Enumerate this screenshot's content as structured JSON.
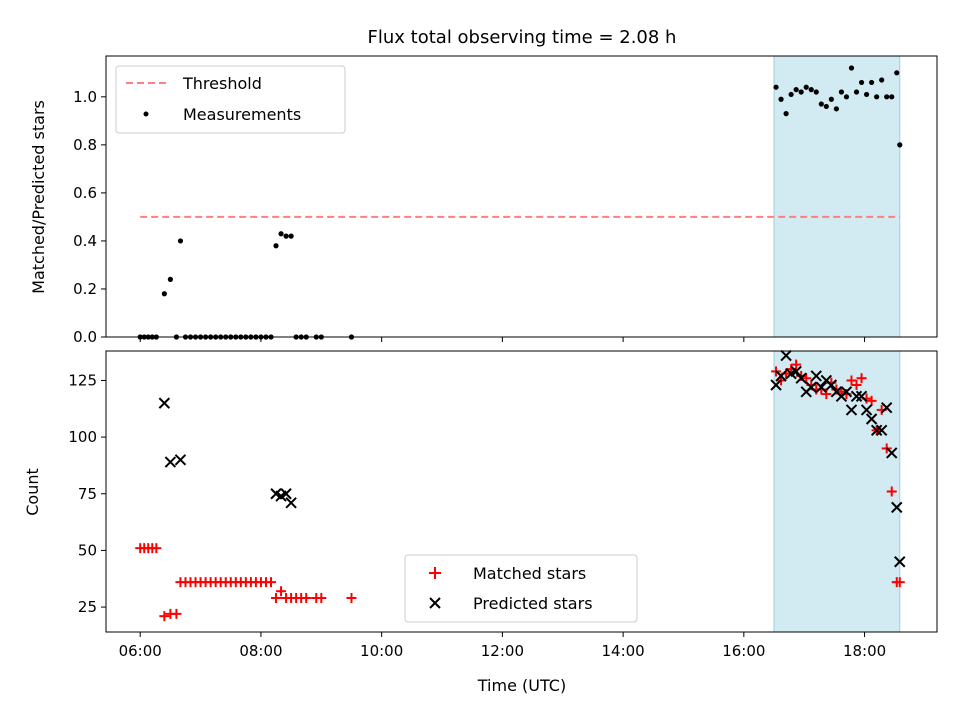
{
  "figure": {
    "title": "Flux total observing time = 2.08 h",
    "xlabel": "Time (UTC)"
  },
  "chart_data": [
    {
      "type": "scatter",
      "ylabel": "Matched/Predicted stars",
      "xlim": [
        "05:26",
        "19:12"
      ],
      "ylim": [
        0,
        1.17
      ],
      "yticks": [
        "0.0",
        "0.2",
        "0.4",
        "0.6",
        "0.8",
        "1.0"
      ],
      "grid": false,
      "legend": "top-left",
      "highlight_span": {
        "start": "16:30",
        "end": "18:35",
        "color": "#add8e6"
      },
      "series": [
        {
          "name": "Threshold",
          "style": "dashed-line",
          "color": "#ff7f7f",
          "x": [
            "06:00",
            "18:35"
          ],
          "y": [
            0.5,
            0.5
          ]
        },
        {
          "name": "Measurements",
          "style": "dot",
          "color": "#000000",
          "x": [
            "06:00",
            "06:04",
            "06:08",
            "06:12",
            "06:16",
            "06:24",
            "06:30",
            "06:36",
            "06:40",
            "06:45",
            "06:50",
            "06:55",
            "07:00",
            "07:05",
            "07:10",
            "07:15",
            "07:20",
            "07:25",
            "07:30",
            "07:35",
            "07:40",
            "07:45",
            "07:50",
            "07:55",
            "08:00",
            "08:05",
            "08:10",
            "08:15",
            "08:20",
            "08:25",
            "08:30",
            "08:35",
            "08:40",
            "08:45",
            "08:55",
            "09:00",
            "09:30",
            "16:32",
            "16:37",
            "16:42",
            "16:47",
            "16:52",
            "16:57",
            "17:02",
            "17:07",
            "17:12",
            "17:17",
            "17:22",
            "17:27",
            "17:32",
            "17:37",
            "17:42",
            "17:47",
            "17:52",
            "17:57",
            "18:02",
            "18:07",
            "18:12",
            "18:17",
            "18:22",
            "18:27",
            "18:32",
            "18:35"
          ],
          "y": [
            0,
            0,
            0,
            0,
            0,
            0.18,
            0.24,
            0,
            0.4,
            0,
            0,
            0,
            0,
            0,
            0,
            0,
            0,
            0,
            0,
            0,
            0,
            0,
            0,
            0,
            0,
            0,
            0,
            0.38,
            0.43,
            0.42,
            0.42,
            0,
            0,
            0,
            0,
            0,
            0,
            1.04,
            0.99,
            0.93,
            1.01,
            1.03,
            1.02,
            1.04,
            1.03,
            1.02,
            0.97,
            0.96,
            0.99,
            0.95,
            1.02,
            1.0,
            1.12,
            1.02,
            1.06,
            1.01,
            1.06,
            1.0,
            1.07,
            1.0,
            1.0,
            1.1,
            0.8
          ]
        }
      ]
    },
    {
      "type": "scatter",
      "ylabel": "Count",
      "xlim": [
        "05:26",
        "19:12"
      ],
      "ylim": [
        14,
        138
      ],
      "yticks": [
        "25",
        "50",
        "75",
        "100",
        "125"
      ],
      "xticks": [
        "06:00",
        "08:00",
        "10:00",
        "12:00",
        "14:00",
        "16:00",
        "18:00"
      ],
      "grid": false,
      "legend": "bottom-center",
      "highlight_span": {
        "start": "16:30",
        "end": "18:35",
        "color": "#add8e6"
      },
      "series": [
        {
          "name": "Matched stars",
          "marker": "+",
          "color": "#ff0000",
          "x": [
            "06:00",
            "06:04",
            "06:08",
            "06:12",
            "06:16",
            "06:24",
            "06:30",
            "06:36",
            "06:40",
            "06:45",
            "06:50",
            "06:55",
            "07:00",
            "07:05",
            "07:10",
            "07:15",
            "07:20",
            "07:25",
            "07:30",
            "07:35",
            "07:40",
            "07:45",
            "07:50",
            "07:55",
            "08:00",
            "08:05",
            "08:10",
            "08:15",
            "08:20",
            "08:25",
            "08:30",
            "08:35",
            "08:40",
            "08:45",
            "08:55",
            "09:00",
            "09:30",
            "16:32",
            "16:37",
            "16:42",
            "16:47",
            "16:52",
            "16:57",
            "17:02",
            "17:07",
            "17:12",
            "17:17",
            "17:22",
            "17:27",
            "17:32",
            "17:37",
            "17:42",
            "17:47",
            "17:52",
            "17:57",
            "18:02",
            "18:07",
            "18:12",
            "18:17",
            "18:22",
            "18:27",
            "18:32",
            "18:35"
          ],
          "y": [
            51,
            51,
            51,
            51,
            51,
            21,
            22,
            22,
            36,
            36,
            36,
            36,
            36,
            36,
            36,
            36,
            36,
            36,
            36,
            36,
            36,
            36,
            36,
            36,
            36,
            36,
            36,
            29,
            32,
            29,
            29,
            29,
            29,
            29,
            29,
            29,
            29,
            129,
            125,
            128,
            130,
            132,
            127,
            126,
            123,
            121,
            121,
            119,
            124,
            121,
            120,
            119,
            125,
            123,
            126,
            117,
            116,
            103,
            112,
            95,
            76,
            36,
            36
          ]
        },
        {
          "name": "Predicted stars",
          "marker": "x",
          "color": "#000000",
          "x": [
            "06:24",
            "06:30",
            "06:40",
            "08:15",
            "08:20",
            "08:25",
            "08:30",
            "16:32",
            "16:37",
            "16:42",
            "16:47",
            "16:52",
            "16:57",
            "17:02",
            "17:07",
            "17:12",
            "17:17",
            "17:22",
            "17:27",
            "17:32",
            "17:37",
            "17:42",
            "17:47",
            "17:52",
            "17:57",
            "18:02",
            "18:07",
            "18:12",
            "18:17",
            "18:22",
            "18:27",
            "18:32",
            "18:35"
          ],
          "y": [
            115,
            89,
            90,
            75,
            74,
            75,
            71,
            123,
            127,
            136,
            128,
            129,
            126,
            120,
            122,
            127,
            122,
            125,
            123,
            120,
            118,
            120,
            112,
            118,
            118,
            112,
            108,
            103,
            103,
            113,
            93,
            69,
            45
          ]
        }
      ]
    }
  ]
}
